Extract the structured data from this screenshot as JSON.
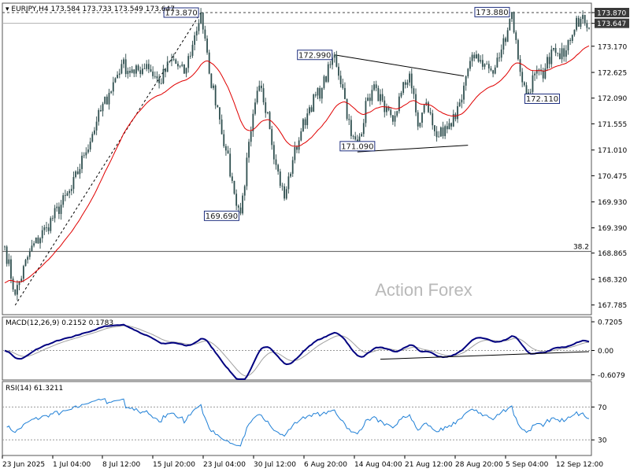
{
  "chart_data": [
    {
      "type": "candlestick",
      "header": {
        "symbol": "EURJPY,H4",
        "ohlc": "173.584 173.733 173.549 173.647"
      },
      "ylim": [
        167.6,
        174.05
      ],
      "y_ticks": [
        {
          "value": 173.87,
          "label": "173.870",
          "highlight": "dark"
        },
        {
          "value": 173.647,
          "label": "173.647",
          "highlight": "dark"
        },
        {
          "value": 173.17,
          "label": "173.170"
        },
        {
          "value": 172.625,
          "label": "172.625"
        },
        {
          "value": 172.09,
          "label": "172.090"
        },
        {
          "value": 171.555,
          "label": "171.555"
        },
        {
          "value": 171.01,
          "label": "171.010"
        },
        {
          "value": 170.475,
          "label": "170.475"
        },
        {
          "value": 169.93,
          "label": "169.930"
        },
        {
          "value": 169.39,
          "label": "169.390"
        },
        {
          "value": 168.865,
          "label": "168.865"
        },
        {
          "value": 168.32,
          "label": "168.320"
        },
        {
          "value": 167.785,
          "label": "167.785"
        }
      ],
      "x_ticks": [
        "23 Jun 2025",
        "1 Jul 04:00",
        "8 Jul 12:00",
        "15 Jul 20:00",
        "23 Jul 04:00",
        "30 Jul 12:00",
        "6 Aug 20:00",
        "14 Aug 04:00",
        "21 Aug 12:00",
        "28 Aug 20:00",
        "5 Sep 04:00",
        "12 Sep 12:00"
      ],
      "price_anchors": [
        [
          0,
          169.0
        ],
        [
          5,
          168.0
        ],
        [
          12,
          168.9
        ],
        [
          20,
          169.4
        ],
        [
          32,
          170.2
        ],
        [
          38,
          170.9
        ],
        [
          44,
          171.6
        ],
        [
          50,
          172.2
        ],
        [
          56,
          172.8
        ],
        [
          62,
          172.6
        ],
        [
          68,
          172.8
        ],
        [
          74,
          172.4
        ],
        [
          80,
          172.9
        ],
        [
          86,
          172.6
        ],
        [
          90,
          173.2
        ],
        [
          94,
          173.87
        ],
        [
          98,
          172.6
        ],
        [
          102,
          171.9
        ],
        [
          106,
          171.0
        ],
        [
          110,
          170.1
        ],
        [
          113,
          169.69
        ],
        [
          118,
          171.4
        ],
        [
          122,
          172.35
        ],
        [
          126,
          171.8
        ],
        [
          130,
          170.7
        ],
        [
          134,
          170.0
        ],
        [
          138,
          170.8
        ],
        [
          142,
          171.4
        ],
        [
          146,
          171.9
        ],
        [
          152,
          172.3
        ],
        [
          158,
          172.99
        ],
        [
          162,
          172.3
        ],
        [
          166,
          171.3
        ],
        [
          169,
          171.09
        ],
        [
          174,
          172.1
        ],
        [
          178,
          172.3
        ],
        [
          182,
          171.8
        ],
        [
          186,
          171.6
        ],
        [
          190,
          172.2
        ],
        [
          194,
          172.6
        ],
        [
          198,
          171.5
        ],
        [
          202,
          172.0
        ],
        [
          206,
          171.4
        ],
        [
          210,
          171.3
        ],
        [
          214,
          171.5
        ],
        [
          218,
          172.0
        ],
        [
          222,
          172.7
        ],
        [
          226,
          173.0
        ],
        [
          230,
          172.8
        ],
        [
          234,
          172.6
        ],
        [
          238,
          173.1
        ],
        [
          243,
          173.88
        ],
        [
          246,
          172.9
        ],
        [
          250,
          172.11
        ],
        [
          254,
          172.6
        ],
        [
          258,
          172.5
        ],
        [
          262,
          173.1
        ],
        [
          266,
          172.9
        ],
        [
          270,
          173.3
        ],
        [
          274,
          173.76
        ],
        [
          278,
          173.65
        ]
      ],
      "moving_average": {
        "color": "#e00000"
      },
      "levels": [
        {
          "value": 173.87,
          "label": "",
          "style": "dashed"
        },
        {
          "value": 173.647,
          "label": "",
          "style": "solid-gray"
        },
        {
          "value": 168.9,
          "label": "38.2",
          "style": "solid"
        }
      ],
      "annotations": [
        {
          "label": "173.870",
          "x_index": 94,
          "value": 173.87
        },
        {
          "label": "173.880",
          "x_index": 243,
          "value": 173.88
        },
        {
          "label": "172.990",
          "x_index": 158,
          "value": 172.99
        },
        {
          "label": "172.110",
          "x_index": 250,
          "value": 172.11
        },
        {
          "label": "171.090",
          "x_index": 169,
          "value": 171.09
        },
        {
          "label": "169.690",
          "x_index": 113,
          "value": 169.69
        }
      ],
      "trendlines": [
        {
          "from": [
            5,
            167.78
          ],
          "to": [
            94,
            173.87
          ],
          "style": "dashed"
        },
        {
          "from": [
            158,
            172.99
          ],
          "to": [
            220,
            172.55
          ],
          "style": "solid"
        },
        {
          "from": [
            169,
            170.97
          ],
          "to": [
            222,
            171.11
          ],
          "style": "solid"
        }
      ],
      "watermark": "Action Forex"
    },
    {
      "type": "macd",
      "label": "MACD(12,26,9) 0.2152 0.1783",
      "ylim": [
        -0.72,
        0.82
      ],
      "y_ticks": [
        {
          "value": 0.7205,
          "label": "0.7205"
        },
        {
          "value": 0.0,
          "label": "0.00"
        },
        {
          "value": -0.6079,
          "label": "-0.6079"
        }
      ],
      "trendline": {
        "from": [
          180,
          -0.22
        ],
        "to": [
          280,
          -0.03
        ]
      }
    },
    {
      "type": "line",
      "label": "RSI(14) 61.3211",
      "ylim": [
        12,
        100
      ],
      "y_ticks": [
        {
          "value": 70,
          "label": "70"
        },
        {
          "value": 30,
          "label": "30"
        }
      ]
    }
  ]
}
